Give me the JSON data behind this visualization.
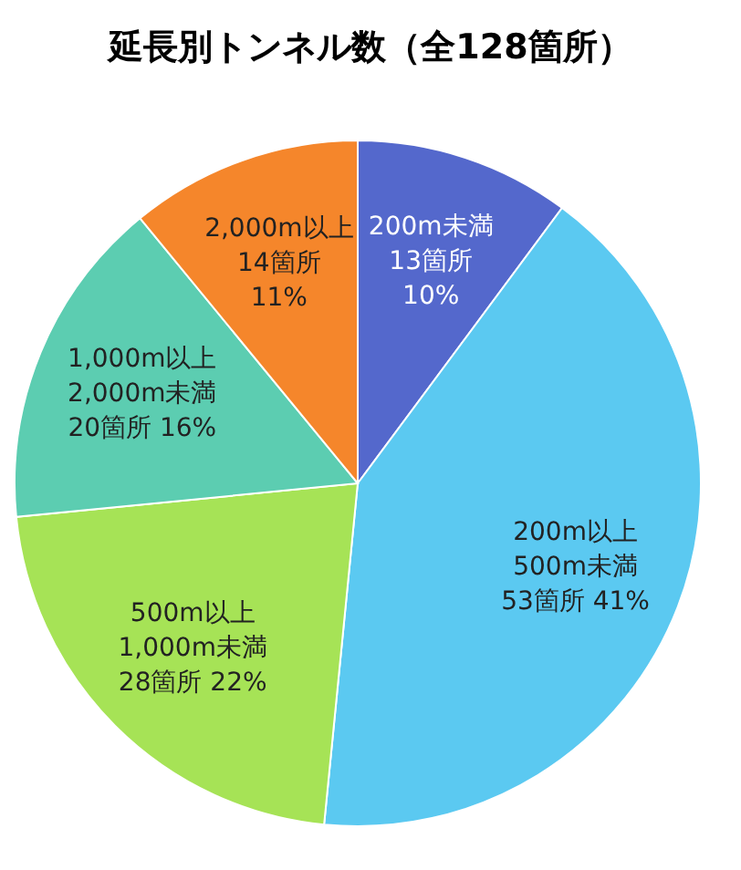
{
  "chart_data": {
    "type": "pie",
    "title": "延長別トンネル数（全128箇所）",
    "categories": [
      "200m未満",
      "200m以上\n500m未満",
      "500m以上\n1,000m未満",
      "1,000m以上\n2,000m未満",
      "2,000m以上"
    ],
    "values": [
      13,
      53,
      28,
      20,
      14
    ],
    "value_labels": [
      "13箇所\n10%",
      "53箇所 41%",
      "28箇所 22%",
      "20箇所 16%",
      "14箇所\n11%"
    ],
    "colors": [
      "#5468cc",
      "#5bc9f1",
      "#a6e356",
      "#5ccdb1",
      "#f5862b"
    ]
  }
}
